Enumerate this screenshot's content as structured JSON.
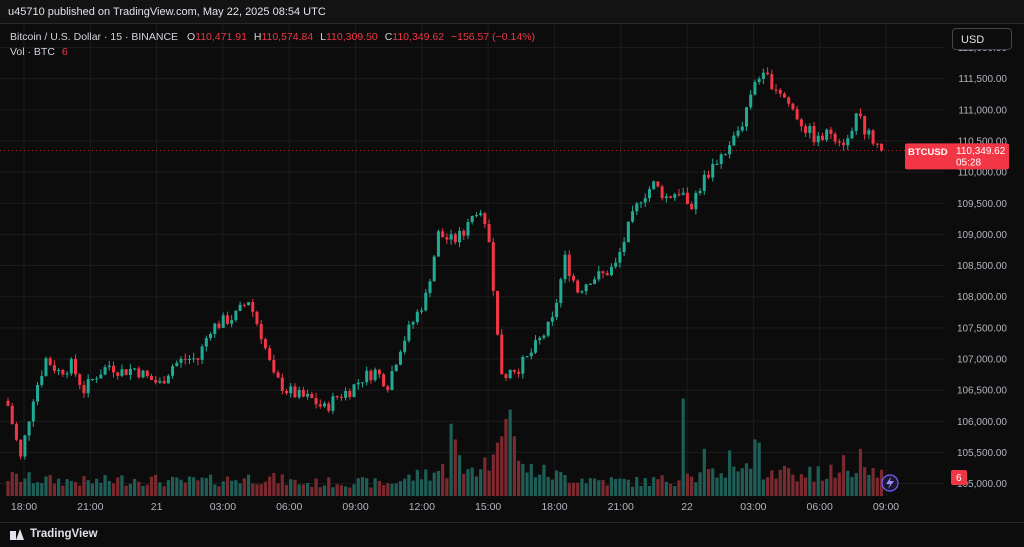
{
  "header": {
    "published": "u45710 published on TradingView.com, May 22, 2025 08:54 UTC"
  },
  "legend": {
    "symbol": "Bitcoin / U.S. Dollar · 15 · BINANCE",
    "o_label": "O",
    "o_value": "110,471.91",
    "h_label": "H",
    "h_value": "110,574.84",
    "l_label": "L",
    "l_value": "110,309.50",
    "c_label": "C",
    "c_value": "110,349.62",
    "change": "−156.57 (−0.14%)",
    "vol_label": "Vol · BTC",
    "vol_value": "6"
  },
  "currency_button": "USD",
  "footer": {
    "brand": "TradingView"
  },
  "colors": {
    "up": "#22ab94",
    "down": "#f23645",
    "up_vol": "#1e5e57",
    "down_vol": "#7a2a2f",
    "grid": "#1c1c1c"
  },
  "chart_data": {
    "type": "candlestick",
    "symbol": "BTCUSD",
    "interval": "15",
    "price_axis_ticks": [
      105000,
      105500,
      106000,
      106500,
      107000,
      107500,
      108000,
      108500,
      109000,
      109500,
      110000,
      110500,
      111000,
      111500,
      112000
    ],
    "price_axis_labels": [
      "105,000.00",
      "105,500.00",
      "106,000.00",
      "106,500.00",
      "107,000.00",
      "107,500.00",
      "108,000.00",
      "108,500.00",
      "109,000.00",
      "109,500.00",
      "110,000.00",
      "110,500.00",
      "111,000.00",
      "111,500.00",
      "112,000.00"
    ],
    "ylim": [
      104800,
      112250
    ],
    "time_axis_labels": [
      "18:00",
      "21:00",
      "21",
      "03:00",
      "06:00",
      "09:00",
      "12:00",
      "15:00",
      "18:00",
      "21:00",
      "22",
      "03:00",
      "06:00",
      "09:00"
    ],
    "last_price_label": "BTCUSD",
    "last_price": "110,349.62",
    "last_price_value": 110349.62,
    "countdown": "05:28",
    "last_volume": "6",
    "close_path": [
      [
        0,
        106250
      ],
      [
        3,
        105400
      ],
      [
        6,
        106400
      ],
      [
        9,
        107000
      ],
      [
        12,
        106800
      ],
      [
        15,
        106900
      ],
      [
        18,
        106500
      ],
      [
        21,
        106750
      ],
      [
        24,
        106900
      ],
      [
        27,
        106800
      ],
      [
        30,
        106850
      ],
      [
        33,
        106700
      ],
      [
        36,
        106600
      ],
      [
        39,
        106900
      ],
      [
        42,
        107000
      ],
      [
        45,
        107000
      ],
      [
        48,
        107500
      ],
      [
        51,
        107600
      ],
      [
        54,
        107700
      ],
      [
        57,
        107950
      ],
      [
        60,
        107400
      ],
      [
        63,
        106700
      ],
      [
        66,
        106500
      ],
      [
        69,
        106400
      ],
      [
        72,
        106350
      ],
      [
        75,
        106200
      ],
      [
        78,
        106400
      ],
      [
        81,
        106500
      ],
      [
        84,
        106700
      ],
      [
        87,
        106800
      ],
      [
        90,
        106600
      ],
      [
        93,
        107200
      ],
      [
        96,
        107600
      ],
      [
        99,
        108000
      ],
      [
        102,
        109000
      ],
      [
        105,
        108900
      ],
      [
        108,
        109000
      ],
      [
        111,
        109400
      ],
      [
        114,
        108900
      ],
      [
        117,
        106800
      ],
      [
        120,
        106800
      ],
      [
        123,
        107000
      ],
      [
        126,
        107300
      ],
      [
        129,
        107600
      ],
      [
        132,
        108600
      ],
      [
        135,
        108100
      ],
      [
        138,
        108300
      ],
      [
        141,
        108350
      ],
      [
        144,
        108500
      ],
      [
        147,
        109100
      ],
      [
        150,
        109600
      ],
      [
        153,
        109800
      ],
      [
        156,
        109600
      ],
      [
        159,
        109700
      ],
      [
        162,
        109500
      ],
      [
        165,
        109900
      ],
      [
        168,
        110200
      ],
      [
        171,
        110400
      ],
      [
        174,
        110800
      ],
      [
        177,
        111500
      ],
      [
        180,
        111500
      ],
      [
        183,
        111300
      ],
      [
        186,
        111000
      ],
      [
        189,
        110700
      ],
      [
        192,
        110500
      ],
      [
        195,
        110650
      ],
      [
        198,
        110500
      ],
      [
        201,
        110900
      ],
      [
        204,
        110600
      ],
      [
        207,
        110350
      ]
    ],
    "volume_profile": [
      [
        0,
        1.2
      ],
      [
        10,
        1.0
      ],
      [
        20,
        0.9
      ],
      [
        30,
        1.1
      ],
      [
        40,
        0.9
      ],
      [
        50,
        1.0
      ],
      [
        60,
        1.2
      ],
      [
        70,
        0.8
      ],
      [
        80,
        0.9
      ],
      [
        90,
        0.8
      ],
      [
        100,
        1.5
      ],
      [
        110,
        2.0
      ],
      [
        117,
        2.5
      ],
      [
        122,
        1.8
      ],
      [
        130,
        1.3
      ],
      [
        140,
        1.0
      ],
      [
        150,
        0.9
      ],
      [
        160,
        1.1
      ],
      [
        170,
        1.4
      ],
      [
        180,
        1.7
      ],
      [
        190,
        1.4
      ],
      [
        200,
        1.5
      ],
      [
        207,
        1.3
      ]
    ],
    "volume_spikes": [
      [
        105,
        4.6
      ],
      [
        106,
        3.6
      ],
      [
        107,
        2.6
      ],
      [
        116,
        3.4
      ],
      [
        117,
        3.8
      ],
      [
        118,
        4.9
      ],
      [
        119,
        5.5
      ],
      [
        120,
        3.8
      ],
      [
        160,
        6.2
      ],
      [
        165,
        3.0
      ],
      [
        171,
        2.9
      ],
      [
        177,
        3.6
      ],
      [
        178,
        3.4
      ],
      [
        198,
        2.6
      ],
      [
        202,
        3.0
      ]
    ]
  }
}
